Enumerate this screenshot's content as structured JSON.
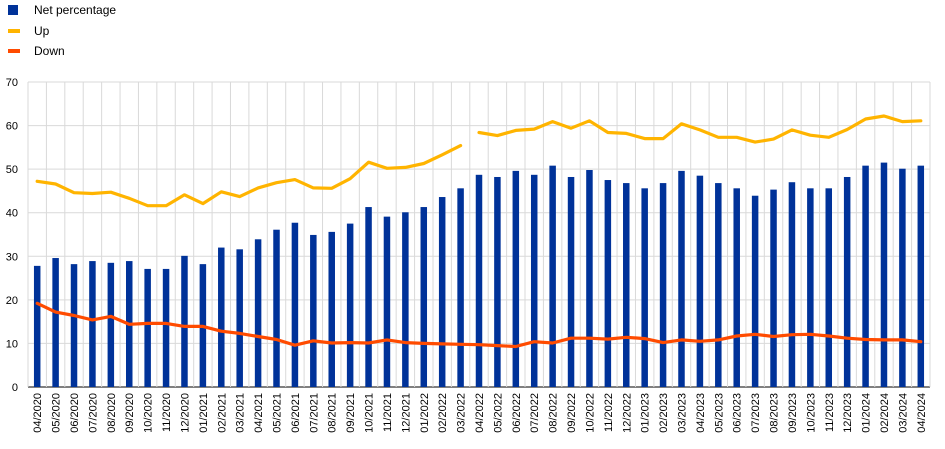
{
  "colors": {
    "bar": "#003299",
    "up": "#FFB400",
    "down": "#FF4B00",
    "grid": "#d9d9d9"
  },
  "chart_data": {
    "type": "bar",
    "title": "",
    "xlabel": "",
    "ylabel": "",
    "ylim": [
      0,
      70
    ],
    "yticks": [
      0,
      10,
      20,
      30,
      40,
      50,
      60,
      70
    ],
    "grid": true,
    "legend": "top-left",
    "categories": [
      "04/2020",
      "05/2020",
      "06/2020",
      "07/2020",
      "08/2020",
      "09/2020",
      "10/2020",
      "11/2020",
      "12/2020",
      "01/2021",
      "02/2021",
      "03/2021",
      "04/2021",
      "05/2021",
      "06/2021",
      "07/2021",
      "08/2021",
      "09/2021",
      "10/2021",
      "11/2021",
      "12/2021",
      "01/2022",
      "02/2022",
      "03/2022",
      "04/2022",
      "05/2022",
      "06/2022",
      "07/2022",
      "08/2022",
      "09/2022",
      "10/2022",
      "11/2022",
      "12/2022",
      "01/2023",
      "02/2023",
      "03/2023",
      "04/2023",
      "05/2023",
      "06/2023",
      "07/2023",
      "08/2023",
      "09/2023",
      "10/2023",
      "11/2023",
      "12/2023",
      "01/2024",
      "02/2024",
      "03/2024",
      "04/2024"
    ],
    "series": [
      {
        "name": "Net percentage",
        "type": "bar",
        "values": [
          27.8,
          29.6,
          28.2,
          28.9,
          28.5,
          28.9,
          27.1,
          27.1,
          30.1,
          28.2,
          32.0,
          31.6,
          33.9,
          36.1,
          37.7,
          34.9,
          35.6,
          37.5,
          41.3,
          39.1,
          40.1,
          41.3,
          43.6,
          45.6,
          48.7,
          48.2,
          49.6,
          48.7,
          50.8,
          48.2,
          49.8,
          47.5,
          46.8,
          45.6,
          46.8,
          49.6,
          48.5,
          46.8,
          45.6,
          43.9,
          45.3,
          47.0,
          45.6,
          45.6,
          48.2,
          50.8,
          51.5,
          50.1,
          50.8
        ]
      },
      {
        "name": "Up",
        "type": "line",
        "gap_after_index": 23,
        "values": [
          47.2,
          46.6,
          44.6,
          44.4,
          44.7,
          43.3,
          41.6,
          41.6,
          44.1,
          42.1,
          44.8,
          43.7,
          45.7,
          46.9,
          47.6,
          45.7,
          45.6,
          47.8,
          51.6,
          50.2,
          50.4,
          51.3,
          53.3,
          55.4,
          58.4,
          57.7,
          58.9,
          59.2,
          60.9,
          59.4,
          61.1,
          58.4,
          58.2,
          57.0,
          57.0,
          60.4,
          59.0,
          57.3,
          57.3,
          56.2,
          56.9,
          59.0,
          57.8,
          57.3,
          59.1,
          61.5,
          62.2,
          60.9,
          61.1
        ]
      },
      {
        "name": "Down",
        "type": "line",
        "values": [
          19.2,
          17.2,
          16.4,
          15.4,
          16.2,
          14.4,
          14.6,
          14.6,
          13.9,
          13.9,
          12.8,
          12.3,
          11.6,
          10.9,
          9.6,
          10.6,
          10.1,
          10.2,
          10.1,
          10.8,
          10.2,
          10.0,
          9.9,
          9.8,
          9.7,
          9.5,
          9.3,
          10.4,
          10.1,
          11.2,
          11.2,
          11.0,
          11.4,
          11.1,
          10.2,
          10.8,
          10.5,
          10.8,
          11.7,
          12.1,
          11.6,
          12.0,
          12.1,
          11.7,
          11.2,
          10.9,
          10.8,
          10.8,
          10.4
        ]
      }
    ]
  }
}
